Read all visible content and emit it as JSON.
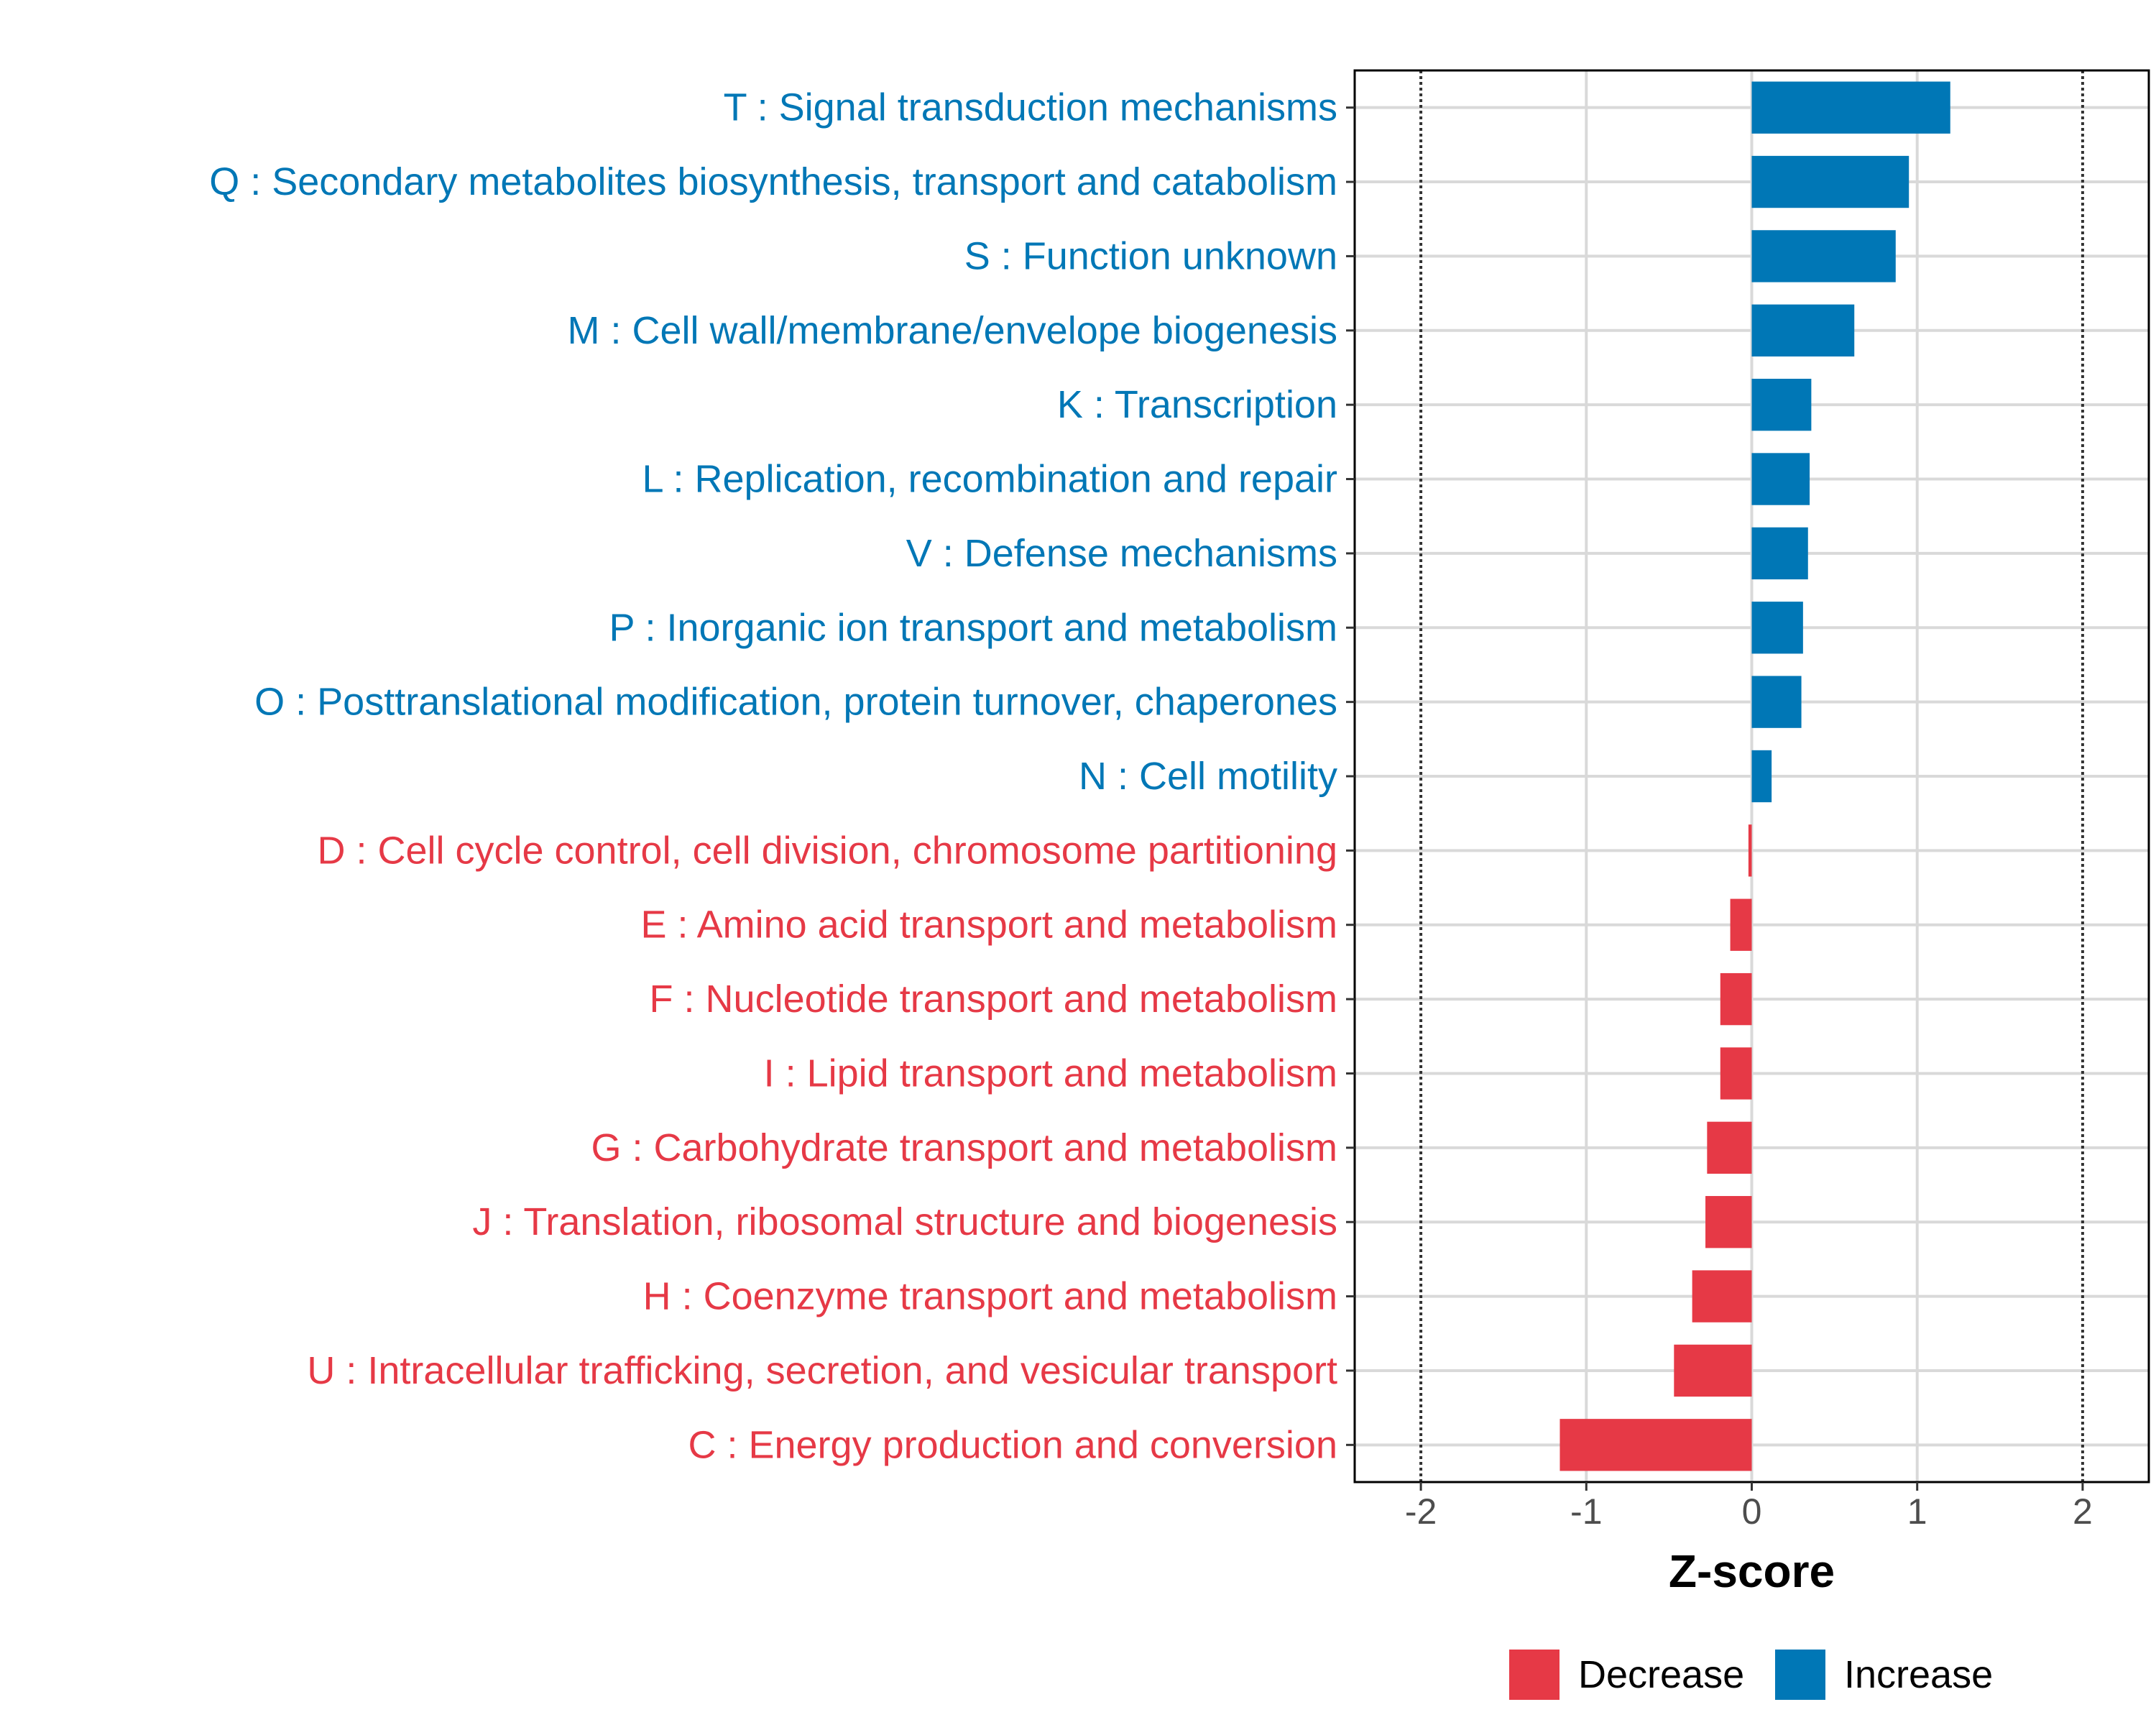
{
  "chart_data": {
    "type": "bar",
    "orientation": "horizontal",
    "xlabel": "Z-score",
    "xlim": [
      -2.4,
      2.4
    ],
    "xticks": [
      -2,
      -1,
      0,
      1,
      2
    ],
    "xtick_labels": [
      "-2",
      "-1",
      "0",
      "1",
      "2"
    ],
    "reference_lines": [
      -2,
      2
    ],
    "grid": true,
    "categories": [
      "T : Signal transduction mechanisms",
      "Q : Secondary metabolites biosynthesis, transport and catabolism",
      "S : Function unknown",
      "M : Cell wall/membrane/envelope biogenesis",
      "K : Transcription",
      "L : Replication, recombination and repair",
      "V : Defense mechanisms",
      "P : Inorganic ion transport and metabolism",
      "O : Posttranslational modification, protein turnover, chaperones",
      "N : Cell motility",
      "D : Cell cycle control, cell division, chromosome partitioning",
      "E : Amino acid transport and metabolism",
      "F : Nucleotide transport and metabolism",
      "I : Lipid transport and metabolism",
      "G : Carbohydrate transport and metabolism",
      "J : Translation, ribosomal structure and biogenesis",
      "H : Coenzyme transport and metabolism",
      "U : Intracellular trafficking, secretion, and vesicular transport",
      "C : Energy production and conversion"
    ],
    "values": [
      1.2,
      0.95,
      0.87,
      0.62,
      0.36,
      0.35,
      0.34,
      0.31,
      0.3,
      0.12,
      -0.02,
      -0.13,
      -0.19,
      -0.19,
      -0.27,
      -0.28,
      -0.36,
      -0.47,
      -1.16
    ],
    "groups": [
      "Increase",
      "Increase",
      "Increase",
      "Increase",
      "Increase",
      "Increase",
      "Increase",
      "Increase",
      "Increase",
      "Increase",
      "Decrease",
      "Decrease",
      "Decrease",
      "Decrease",
      "Decrease",
      "Decrease",
      "Decrease",
      "Decrease",
      "Decrease"
    ],
    "legend": {
      "position": "bottom",
      "entries": [
        {
          "label": "Decrease",
          "color": "#e63946"
        },
        {
          "label": "Increase",
          "color": "#0077b6"
        }
      ]
    }
  }
}
